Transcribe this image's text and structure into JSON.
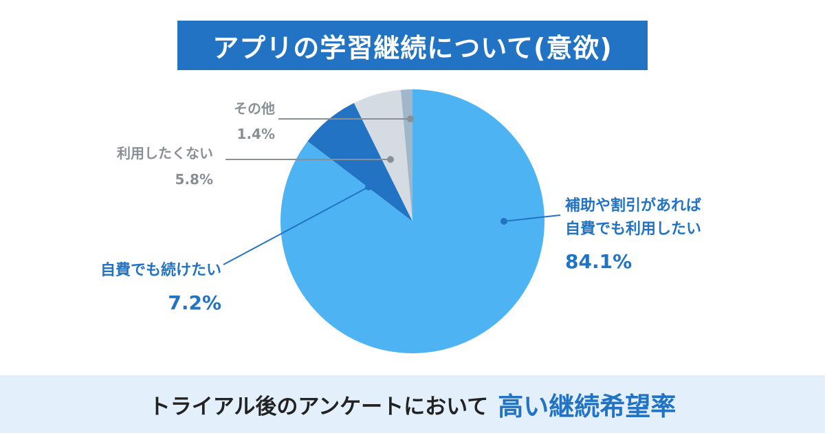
{
  "title": "アプリの学習継続について(意欲)",
  "footer": {
    "text": "トライアル後のアンケートにおいて",
    "emphasis": "高い継続希望率"
  },
  "colors": {
    "title_bg": "#2273c3",
    "footer_bg": "#e3f0fb",
    "accent_text": "#2273c3",
    "muted_text": "#8a8f96"
  },
  "chart_data": {
    "type": "pie",
    "start": "12 o'clock",
    "direction": "clockwise",
    "slices": [
      {
        "label_lines": [
          "補助や割引があれば",
          "自費でも利用したい"
        ],
        "value": 84.1,
        "value_label": "84.1%",
        "color": "#4db3f3",
        "label_color": "#2273c3"
      },
      {
        "label_lines": [
          "自費でも続けたい"
        ],
        "value": 7.2,
        "value_label": "7.2%",
        "color": "#2273c3",
        "label_color": "#2273c3"
      },
      {
        "label_lines": [
          "利用したくない"
        ],
        "value": 5.8,
        "value_label": "5.8%",
        "color": "#d5dbe2",
        "label_color": "#8a8f96"
      },
      {
        "label_lines": [
          "その他"
        ],
        "value": 1.4,
        "value_label": "1.4%",
        "color": "#9fb7c9",
        "label_color": "#8a8f96"
      }
    ]
  }
}
